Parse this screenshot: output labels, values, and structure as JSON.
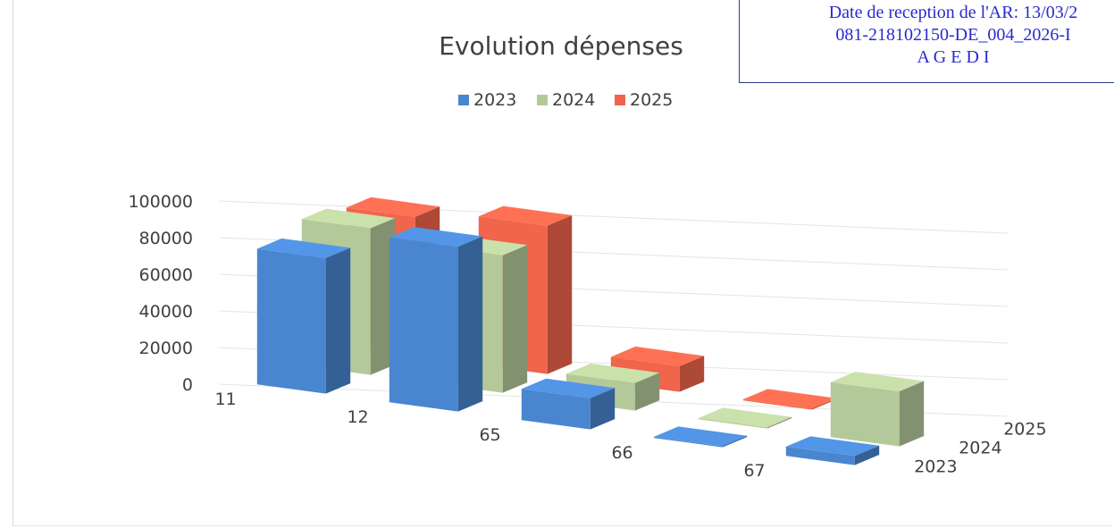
{
  "stamp": {
    "line1": "Date de reception de l'AR: 13/03/2",
    "line2": "081-218102150-DE_004_2026-I",
    "line3": "A G E D I"
  },
  "chart_data": {
    "type": "bar",
    "title": "Evolution dépenses",
    "categories": [
      "11",
      "12",
      "65",
      "66",
      "67"
    ],
    "depth_labels": [
      "2023",
      "2024",
      "2025"
    ],
    "ylim": [
      0,
      100000
    ],
    "yticks": [
      "0",
      "20000",
      "40000",
      "60000",
      "80000",
      "100000"
    ],
    "legend_position": "top",
    "grid": true,
    "series": [
      {
        "name": "2023",
        "color": "#4a86cf",
        "values": [
          74000,
          90000,
          17000,
          600,
          5000
        ]
      },
      {
        "name": "2024",
        "color": "#b4c99a",
        "values": [
          80000,
          75000,
          15000,
          600,
          30000
        ]
      },
      {
        "name": "2025",
        "color": "#f0654b",
        "values": [
          76000,
          81000,
          14000,
          600,
          0
        ]
      }
    ]
  }
}
